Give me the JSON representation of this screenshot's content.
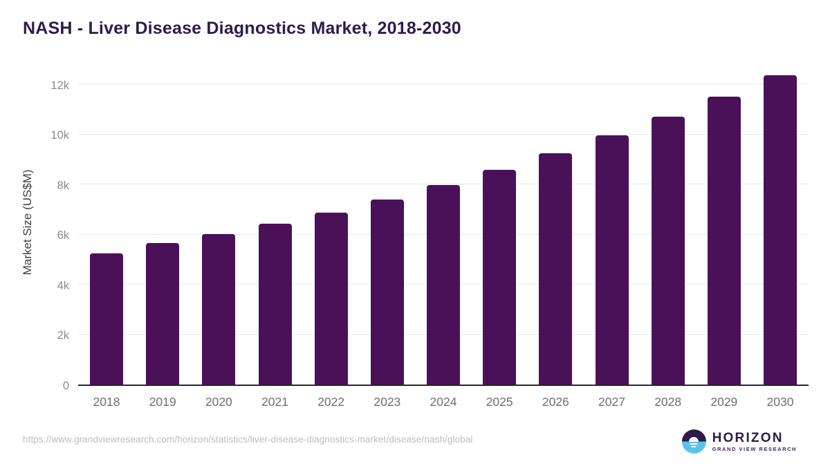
{
  "title": "NASH - Liver Disease Diagnostics Market, 2018-2030",
  "chart_data": {
    "type": "bar",
    "title": "NASH - Liver Disease Diagnostics Market, 2018-2030",
    "categories": [
      "2018",
      "2019",
      "2020",
      "2021",
      "2022",
      "2023",
      "2024",
      "2025",
      "2026",
      "2027",
      "2028",
      "2029",
      "2030"
    ],
    "values": [
      5240,
      5650,
      6000,
      6420,
      6870,
      7400,
      7970,
      8570,
      9230,
      9950,
      10710,
      11510,
      12350
    ],
    "xlabel": "",
    "ylabel": "Market Size (US$M)",
    "ylim": [
      0,
      12660
    ],
    "yticks": [
      {
        "label": "0",
        "value": 0
      },
      {
        "label": "2k",
        "value": 2000
      },
      {
        "label": "4k",
        "value": 4000
      },
      {
        "label": "6k",
        "value": 6000
      },
      {
        "label": "8k",
        "value": 8000
      },
      {
        "label": "10k",
        "value": 10000
      },
      {
        "label": "12k",
        "value": 12000
      }
    ],
    "grid": "horizontal",
    "legend": "none",
    "bar_color": "#4A1159",
    "axis_line_color": "#262626",
    "gridline_color": "#E9E9E9"
  },
  "footer": {
    "source_url": "https://www.grandviewresearch.com/horizon/statistics/liver-disease-diagnostics-market/disease/nash/global",
    "logo": {
      "name": "HORIZON",
      "subtitle": "GRAND VIEW RESEARCH",
      "mark_top_color": "#2E1A47",
      "mark_bottom_color": "#58C3EB"
    }
  },
  "colors": {
    "title": "#2F1A4E",
    "y_axis_title": "#3F3F3F",
    "y_tick_label": "#8A8A8A",
    "x_tick_label": "#6E6E6E",
    "source_url": "#BDBDBD",
    "background": "#FFFFFF"
  }
}
